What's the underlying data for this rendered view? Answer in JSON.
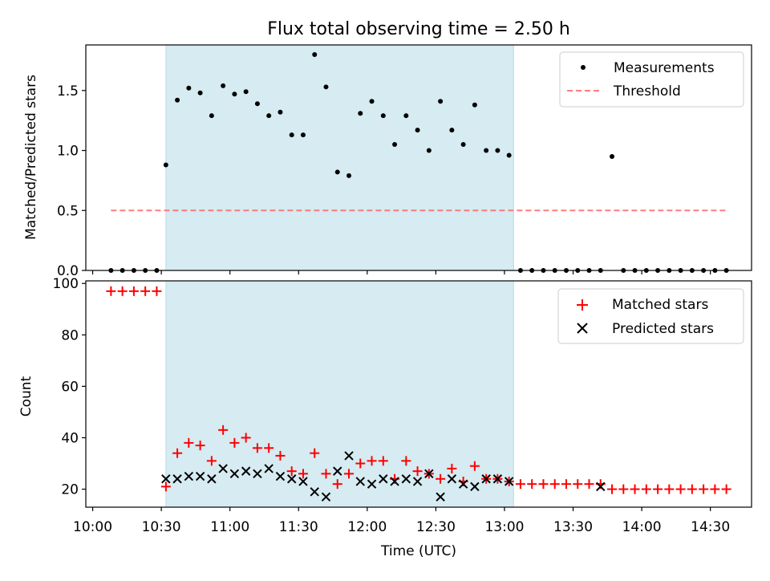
{
  "chart_data": [
    {
      "type": "scatter",
      "title": "Flux total observing time = 2.50 h",
      "xlabel": "",
      "ylabel": "Matched/Predicted stars",
      "ylim": [
        0,
        1.88
      ],
      "yticks": [
        "0.0",
        "0.5",
        "1.0",
        "1.5"
      ],
      "ytick_values": [
        0,
        0.5,
        1.0,
        1.5
      ],
      "highlight_span": {
        "start": "10:32",
        "end": "13:04",
        "color": "#add8e6"
      },
      "legend": {
        "position": "top-right",
        "entries": [
          "Measurements",
          "Threshold"
        ]
      },
      "series": [
        {
          "name": "Measurements",
          "marker": "dot",
          "color": "#000000",
          "x": [
            "10:08",
            "10:13",
            "10:18",
            "10:23",
            "10:28",
            "10:32",
            "10:37",
            "10:42",
            "10:47",
            "10:52",
            "10:57",
            "11:02",
            "11:07",
            "11:12",
            "11:17",
            "11:22",
            "11:27",
            "11:32",
            "11:37",
            "11:42",
            "11:47",
            "11:52",
            "11:57",
            "12:02",
            "12:07",
            "12:12",
            "12:17",
            "12:22",
            "12:27",
            "12:32",
            "12:37",
            "12:42",
            "12:47",
            "12:52",
            "12:57",
            "13:02",
            "13:07",
            "13:12",
            "13:17",
            "13:22",
            "13:27",
            "13:32",
            "13:37",
            "13:42",
            "13:47",
            "13:52",
            "13:57",
            "14:02",
            "14:07",
            "14:12",
            "14:17",
            "14:22",
            "14:27",
            "14:32",
            "14:37"
          ],
          "y": [
            0,
            0,
            0,
            0,
            0,
            0.88,
            1.42,
            1.52,
            1.48,
            1.29,
            1.54,
            1.47,
            1.49,
            1.39,
            1.29,
            1.32,
            1.13,
            1.13,
            1.8,
            1.53,
            0.82,
            0.79,
            1.31,
            1.41,
            1.29,
            1.05,
            1.29,
            1.17,
            1.0,
            1.41,
            1.17,
            1.05,
            1.38,
            1.0,
            1.0,
            0.96,
            0,
            0,
            0,
            0,
            0,
            0,
            0,
            0,
            0.95,
            0,
            0,
            0,
            0,
            0,
            0,
            0,
            0,
            0,
            0
          ]
        },
        {
          "name": "Threshold",
          "style": "dashed",
          "color": "#ff6666",
          "x": [
            "10:08",
            "14:37"
          ],
          "y": [
            0.5,
            0.5
          ]
        }
      ]
    },
    {
      "type": "scatter",
      "title": "",
      "xlabel": "Time (UTC)",
      "ylabel": "Count",
      "ylim": [
        13,
        101
      ],
      "yticks": [
        "20",
        "40",
        "60",
        "80",
        "100"
      ],
      "ytick_values": [
        20,
        40,
        60,
        80,
        100
      ],
      "xticks": [
        "10:00",
        "10:30",
        "11:00",
        "11:30",
        "12:00",
        "12:30",
        "13:00",
        "13:30",
        "14:00",
        "14:30"
      ],
      "xlim": [
        "09:57",
        "14:48"
      ],
      "highlight_span": {
        "start": "10:32",
        "end": "13:04",
        "color": "#add8e6"
      },
      "legend": {
        "position": "top-right",
        "entries": [
          "Matched stars",
          "Predicted stars"
        ]
      },
      "series": [
        {
          "name": "Matched stars",
          "marker": "plus",
          "color": "#ff0000",
          "x": [
            "10:08",
            "10:13",
            "10:18",
            "10:23",
            "10:28",
            "10:32",
            "10:37",
            "10:42",
            "10:47",
            "10:52",
            "10:57",
            "11:02",
            "11:07",
            "11:12",
            "11:17",
            "11:22",
            "11:27",
            "11:32",
            "11:37",
            "11:42",
            "11:47",
            "11:52",
            "11:57",
            "12:02",
            "12:07",
            "12:12",
            "12:17",
            "12:22",
            "12:27",
            "12:32",
            "12:37",
            "12:42",
            "12:47",
            "12:52",
            "12:57",
            "13:02",
            "13:07",
            "13:12",
            "13:17",
            "13:22",
            "13:27",
            "13:32",
            "13:37",
            "13:42",
            "13:47",
            "13:52",
            "13:57",
            "14:02",
            "14:07",
            "14:12",
            "14:17",
            "14:22",
            "14:27",
            "14:32",
            "14:37"
          ],
          "y": [
            97,
            97,
            97,
            97,
            97,
            21,
            34,
            38,
            37,
            31,
            43,
            38,
            40,
            36,
            36,
            33,
            27,
            26,
            34,
            26,
            22,
            26,
            30,
            31,
            31,
            24,
            31,
            27,
            26,
            24,
            28,
            23,
            29,
            24,
            24,
            23,
            22,
            22,
            22,
            22,
            22,
            22,
            22,
            22,
            20,
            20,
            20,
            20,
            20,
            20,
            20,
            20,
            20,
            20,
            20
          ]
        },
        {
          "name": "Predicted stars",
          "marker": "x",
          "color": "#000000",
          "x": [
            "10:32",
            "10:37",
            "10:42",
            "10:47",
            "10:52",
            "10:57",
            "11:02",
            "11:07",
            "11:12",
            "11:17",
            "11:22",
            "11:27",
            "11:32",
            "11:37",
            "11:42",
            "11:47",
            "11:52",
            "11:57",
            "12:02",
            "12:07",
            "12:12",
            "12:17",
            "12:22",
            "12:27",
            "12:32",
            "12:37",
            "12:42",
            "12:47",
            "12:52",
            "12:57",
            "13:02",
            "13:42"
          ],
          "y": [
            24,
            24,
            25,
            25,
            24,
            28,
            26,
            27,
            26,
            28,
            25,
            24,
            23,
            19,
            17,
            27,
            33,
            23,
            22,
            24,
            23,
            24,
            23,
            26,
            17,
            24,
            22,
            21,
            24,
            24,
            23,
            21
          ]
        }
      ]
    }
  ]
}
